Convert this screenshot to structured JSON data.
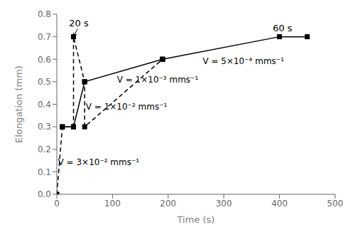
{
  "chart_data": {
    "type": "line",
    "xlabel": "Time (s)",
    "ylabel": "Elongation (mm)",
    "xlim": [
      0,
      500
    ],
    "ylim": [
      0,
      0.8
    ],
    "xticks": [
      0,
      100,
      200,
      300,
      400,
      500
    ],
    "yticks": [
      {
        "value": 0,
        "label": "0.0"
      },
      0.1,
      0.2,
      0.3,
      0.4,
      0.5,
      0.6,
      0.7,
      0.8
    ],
    "grid": false,
    "series": [
      {
        "color": "#000000",
        "line_style": "solid",
        "marker": "square",
        "x": [
          10,
          30,
          50,
          190,
          400,
          450
        ],
        "values": [
          0.3,
          0.3,
          0.5,
          0.6,
          0.7,
          0.7
        ]
      },
      {
        "color": "#000000",
        "line_style": "dashed",
        "marker": "square",
        "x": [
          0,
          10,
          30,
          30,
          50,
          50,
          190,
          190
        ],
        "values": [
          0.0,
          0.3,
          0.3,
          0.7,
          0.5,
          0.3,
          0.6,
          0.6
        ]
      }
    ],
    "annotations": [
      {
        "text": "20 s",
        "x": 22,
        "y": 0.745,
        "arrow_to": [
          30,
          0.7
        ]
      },
      {
        "text": "60 s",
        "x": 388,
        "y": 0.725
      },
      {
        "text": "V = 3×10⁻² mms⁻¹",
        "x": 2,
        "y": 0.13
      },
      {
        "text": "V = 1×10⁻² mms⁻¹",
        "x": 52,
        "y": 0.375
      },
      {
        "text": "V = 1×10⁻³ mms⁻¹",
        "x": 108,
        "y": 0.495
      },
      {
        "text": "V = 5×10⁻⁴ mms⁻¹",
        "x": 262,
        "y": 0.578
      }
    ]
  }
}
